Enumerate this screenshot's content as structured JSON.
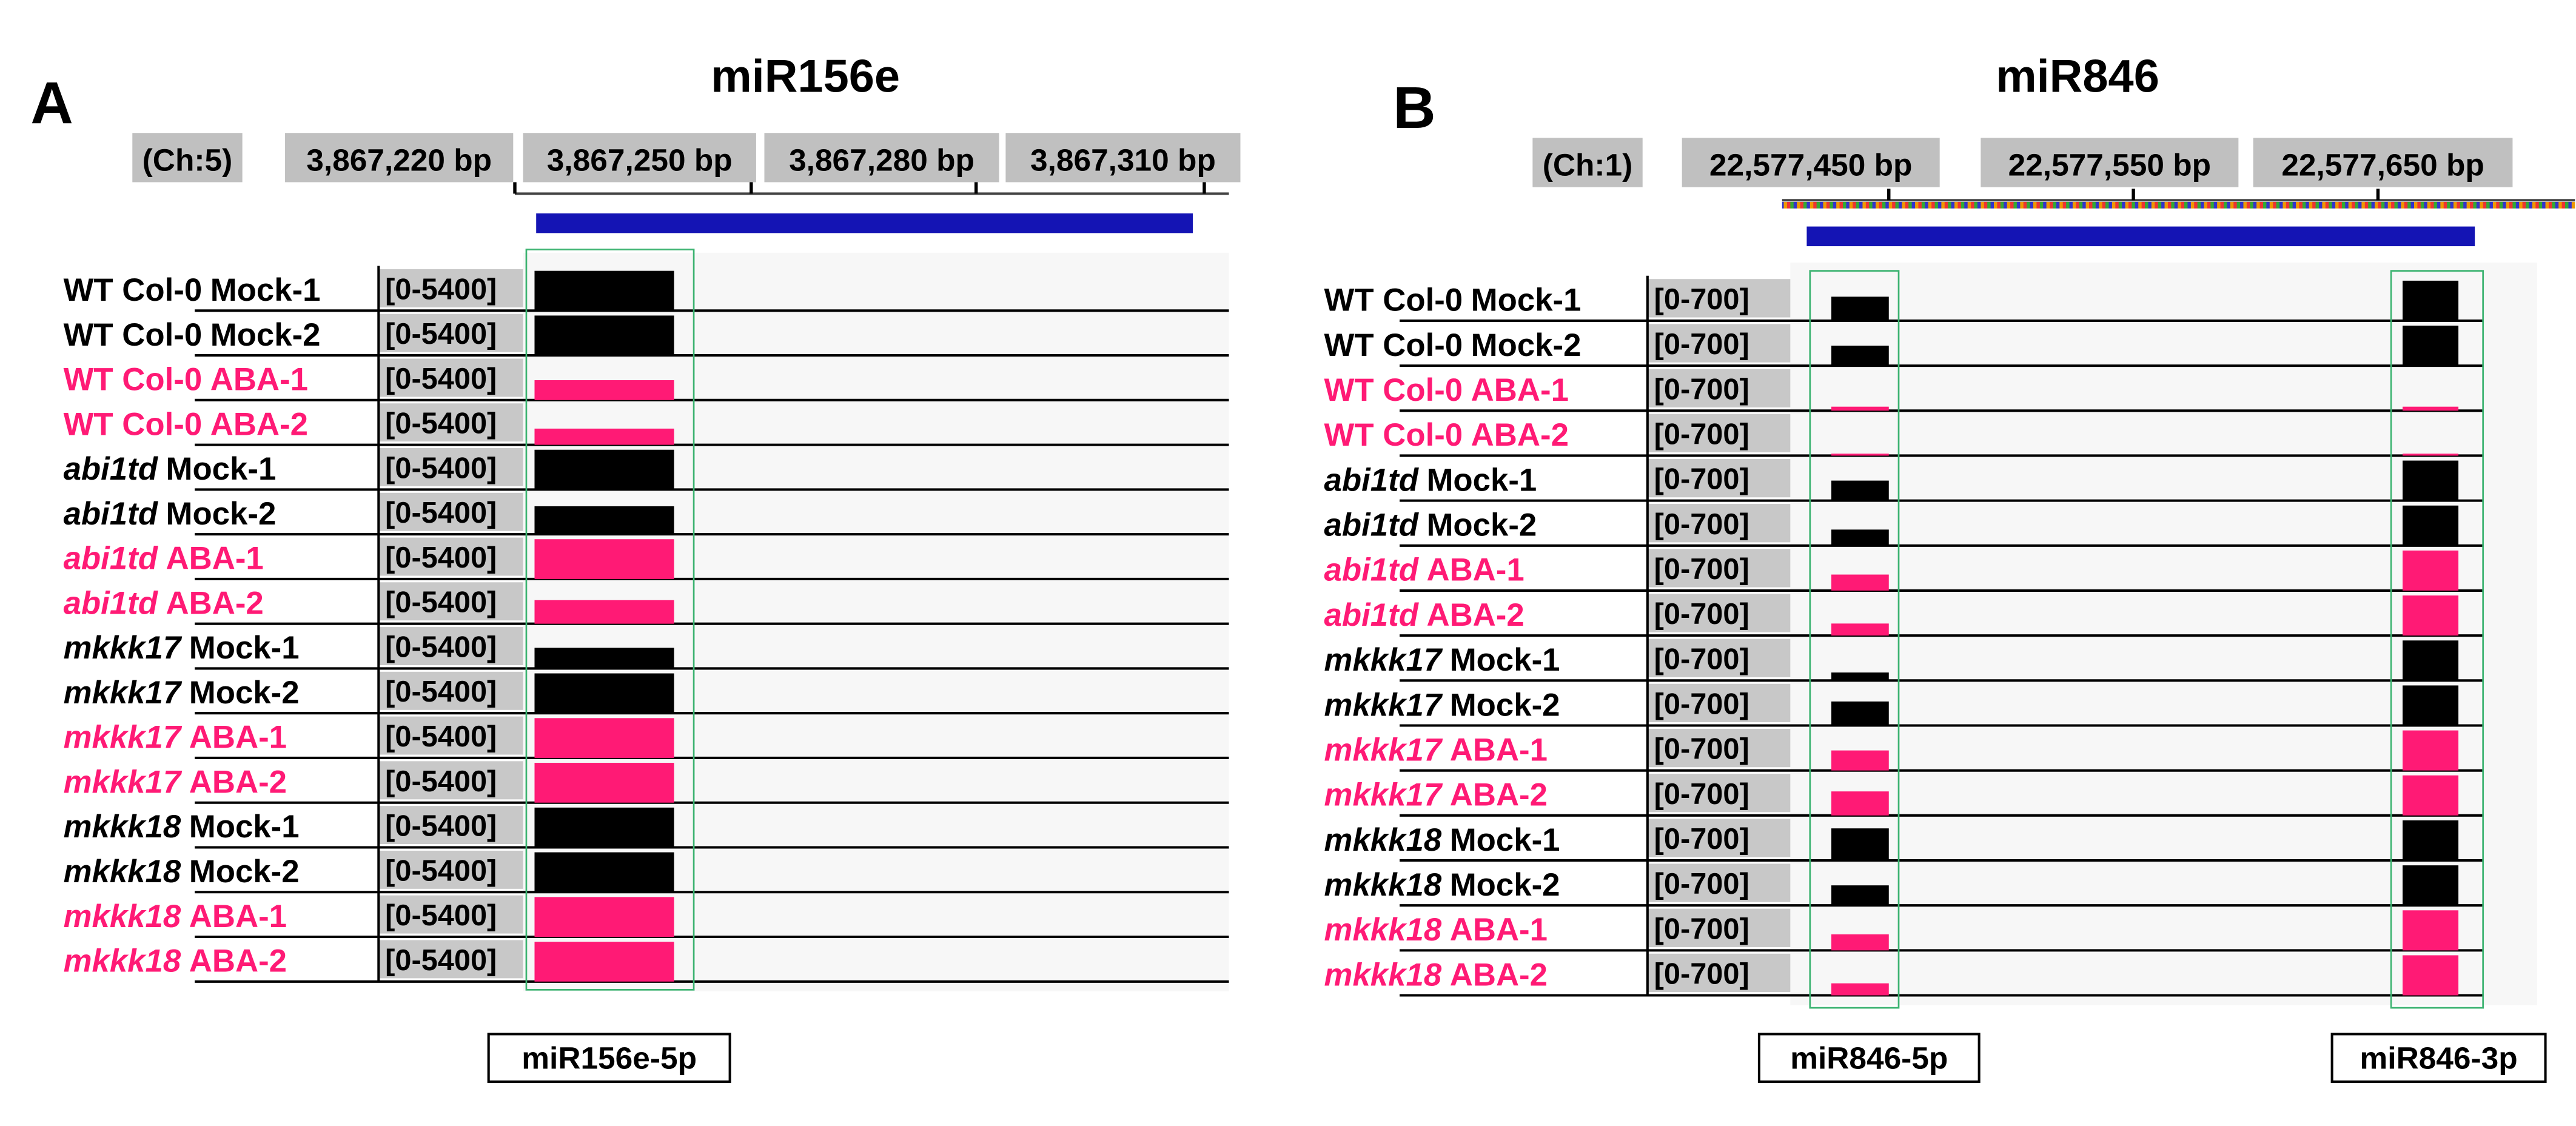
{
  "panels": [
    {
      "label": "A",
      "title": "miR156e",
      "chromosome": "(Ch:5)",
      "positions": [
        "3,867,220 bp",
        "3,867,250 bp",
        "3,867,280 bp",
        "3,867,310 bp"
      ],
      "annotations": [
        "miR156e-5p"
      ],
      "tracks": [
        {
          "genotype": "WT Col-0",
          "italic": false,
          "condition": "Mock-1",
          "color": "#000000",
          "range": "[0-5400]",
          "coverage": [
            5400
          ]
        },
        {
          "genotype": "WT Col-0",
          "italic": false,
          "condition": "Mock-2",
          "color": "#000000",
          "range": "[0-5400]",
          "coverage": [
            5400
          ]
        },
        {
          "genotype": "WT Col-0",
          "italic": false,
          "condition": "ABA-1",
          "color": "#ff1a75",
          "range": "[0-5400]",
          "coverage": [
            2700
          ]
        },
        {
          "genotype": "WT Col-0",
          "italic": false,
          "condition": "ABA-2",
          "color": "#ff1a75",
          "range": "[0-5400]",
          "coverage": [
            2200
          ]
        },
        {
          "genotype": "abi1td",
          "italic": true,
          "condition": "Mock-1",
          "color": "#000000",
          "range": "[0-5400]",
          "coverage": [
            5400
          ]
        },
        {
          "genotype": "abi1td",
          "italic": true,
          "condition": "Mock-2",
          "color": "#000000",
          "range": "[0-5400]",
          "coverage": [
            3800
          ]
        },
        {
          "genotype": "abi1td",
          "italic": true,
          "condition": "ABA-1",
          "color": "#ff1a75",
          "range": "[0-5400]",
          "coverage": [
            5400
          ]
        },
        {
          "genotype": "abi1td",
          "italic": true,
          "condition": "ABA-2",
          "color": "#ff1a75",
          "range": "[0-5400]",
          "coverage": [
            3200
          ]
        },
        {
          "genotype": "mkkk17",
          "italic": true,
          "condition": "Mock-1",
          "color": "#000000",
          "range": "[0-5400]",
          "coverage": [
            2800
          ]
        },
        {
          "genotype": "mkkk17",
          "italic": true,
          "condition": "Mock-2",
          "color": "#000000",
          "range": "[0-5400]",
          "coverage": [
            5400
          ]
        },
        {
          "genotype": "mkkk17",
          "italic": true,
          "condition": "ABA-1",
          "color": "#ff1a75",
          "range": "[0-5400]",
          "coverage": [
            5400
          ]
        },
        {
          "genotype": "mkkk17",
          "italic": true,
          "condition": "ABA-2",
          "color": "#ff1a75",
          "range": "[0-5400]",
          "coverage": [
            5400
          ]
        },
        {
          "genotype": "mkkk18",
          "italic": true,
          "condition": "Mock-1",
          "color": "#000000",
          "range": "[0-5400]",
          "coverage": [
            5400
          ]
        },
        {
          "genotype": "mkkk18",
          "italic": true,
          "condition": "Mock-2",
          "color": "#000000",
          "range": "[0-5400]",
          "coverage": [
            5400
          ]
        },
        {
          "genotype": "mkkk18",
          "italic": true,
          "condition": "ABA-1",
          "color": "#ff1a75",
          "range": "[0-5400]",
          "coverage": [
            5400
          ]
        },
        {
          "genotype": "mkkk18",
          "italic": true,
          "condition": "ABA-2",
          "color": "#ff1a75",
          "range": "[0-5400]",
          "coverage": [
            5400
          ]
        }
      ]
    },
    {
      "label": "B",
      "title": "miR846",
      "chromosome": "(Ch:1)",
      "positions": [
        "22,577,450 bp",
        "22,577,550 bp",
        "22,577,650 bp"
      ],
      "annotations": [
        "miR846-5p",
        "miR846-3p"
      ],
      "tracks": [
        {
          "genotype": "WT Col-0",
          "italic": false,
          "condition": "Mock-1",
          "color": "#000000",
          "range": "[0-700]",
          "coverage": [
            420,
            700
          ]
        },
        {
          "genotype": "WT Col-0",
          "italic": false,
          "condition": "Mock-2",
          "color": "#000000",
          "range": "[0-700]",
          "coverage": [
            350,
            700
          ]
        },
        {
          "genotype": "WT Col-0",
          "italic": false,
          "condition": "ABA-1",
          "color": "#ff1a75",
          "range": "[0-700]",
          "coverage": [
            70,
            70
          ]
        },
        {
          "genotype": "WT Col-0",
          "italic": false,
          "condition": "ABA-2",
          "color": "#ff1a75",
          "range": "[0-700]",
          "coverage": [
            35,
            35
          ]
        },
        {
          "genotype": "abi1td",
          "italic": true,
          "condition": "Mock-1",
          "color": "#000000",
          "range": "[0-700]",
          "coverage": [
            350,
            700
          ]
        },
        {
          "genotype": "abi1td",
          "italic": true,
          "condition": "Mock-2",
          "color": "#000000",
          "range": "[0-700]",
          "coverage": [
            280,
            700
          ]
        },
        {
          "genotype": "abi1td",
          "italic": true,
          "condition": "ABA-1",
          "color": "#ff1a75",
          "range": "[0-700]",
          "coverage": [
            280,
            700
          ]
        },
        {
          "genotype": "abi1td",
          "italic": true,
          "condition": "ABA-2",
          "color": "#ff1a75",
          "range": "[0-700]",
          "coverage": [
            210,
            700
          ]
        },
        {
          "genotype": "mkkk17",
          "italic": true,
          "condition": "Mock-1",
          "color": "#000000",
          "range": "[0-700]",
          "coverage": [
            140,
            700
          ]
        },
        {
          "genotype": "mkkk17",
          "italic": true,
          "condition": "Mock-2",
          "color": "#000000",
          "range": "[0-700]",
          "coverage": [
            420,
            700
          ]
        },
        {
          "genotype": "mkkk17",
          "italic": true,
          "condition": "ABA-1",
          "color": "#ff1a75",
          "range": "[0-700]",
          "coverage": [
            350,
            700
          ]
        },
        {
          "genotype": "mkkk17",
          "italic": true,
          "condition": "ABA-2",
          "color": "#ff1a75",
          "range": "[0-700]",
          "coverage": [
            420,
            700
          ]
        },
        {
          "genotype": "mkkk18",
          "italic": true,
          "condition": "Mock-1",
          "color": "#000000",
          "range": "[0-700]",
          "coverage": [
            560,
            700
          ]
        },
        {
          "genotype": "mkkk18",
          "italic": true,
          "condition": "Mock-2",
          "color": "#000000",
          "range": "[0-700]",
          "coverage": [
            350,
            700
          ]
        },
        {
          "genotype": "mkkk18",
          "italic": true,
          "condition": "ABA-1",
          "color": "#ff1a75",
          "range": "[0-700]",
          "coverage": [
            280,
            700
          ]
        },
        {
          "genotype": "mkkk18",
          "italic": true,
          "condition": "ABA-2",
          "color": "#ff1a75",
          "range": "[0-700]",
          "coverage": [
            210,
            700
          ]
        }
      ]
    }
  ]
}
